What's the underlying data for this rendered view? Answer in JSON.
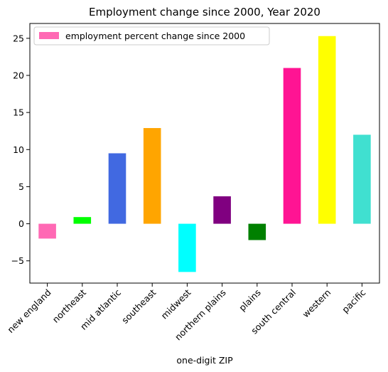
{
  "chart_data": {
    "type": "bar",
    "title": "Employment change since 2000, Year 2020",
    "xlabel": "one-digit ZIP",
    "ylabel": "",
    "categories": [
      "new england",
      "northeast",
      "mid atlantic",
      "southeast",
      "midwest",
      "northern plains",
      "plains",
      "south central",
      "western",
      "pacific"
    ],
    "series": [
      {
        "name": "employment percent change since 2000",
        "values": [
          -2.0,
          0.9,
          9.5,
          12.9,
          -6.5,
          3.7,
          -2.2,
          21.0,
          25.3,
          12.0
        ]
      }
    ],
    "colors": [
      "#ff69b4",
      "#00ff00",
      "#4169e1",
      "#ffa500",
      "#00ffff",
      "#800080",
      "#008000",
      "#ff1493",
      "#ffff00",
      "#40e0d0"
    ],
    "ylim": [
      -8,
      27
    ],
    "yticks": [
      -5,
      0,
      5,
      10,
      15,
      20,
      25
    ],
    "ytick_labels": [
      "−5",
      "0",
      "5",
      "10",
      "15",
      "20",
      "25"
    ],
    "grid": false,
    "legend_position": "top-left"
  }
}
